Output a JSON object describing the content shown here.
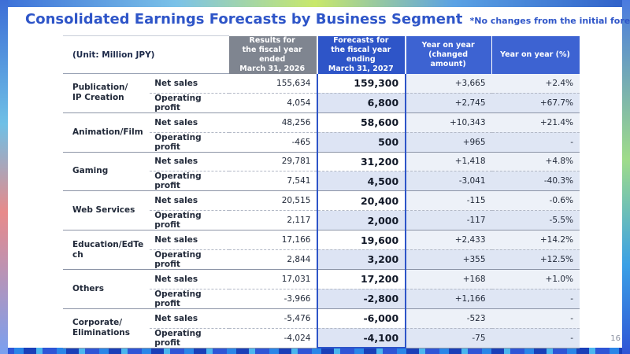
{
  "slide": {
    "title": "Consolidated Earnings Forecasts by Business Segment",
    "note": "*No changes from the initial forecasts",
    "page_number": "16"
  },
  "table": {
    "unit_label": "(Unit: Million JPY)",
    "headers": {
      "results": "Results for\nthe fiscal year ended\nMarch 31, 2026",
      "forecasts": "Forecasts for\nthe fiscal year ending\nMarch 31, 2027",
      "yoy_amount": "Year on year\n(changed amount)",
      "yoy_pct": "Year on year (%)"
    },
    "segments": [
      {
        "name": "Publication/\nIP Creation",
        "rows": [
          {
            "metric": "Net sales",
            "result": "155,634",
            "forecast": "159,300",
            "yoy": "+3,665",
            "pct": "+2.4%"
          },
          {
            "metric": "Operating profit",
            "result": "4,054",
            "forecast": "6,800",
            "yoy": "+2,745",
            "pct": "+67.7%"
          }
        ]
      },
      {
        "name": "Animation/Film",
        "rows": [
          {
            "metric": "Net sales",
            "result": "48,256",
            "forecast": "58,600",
            "yoy": "+10,343",
            "pct": "+21.4%"
          },
          {
            "metric": "Operating profit",
            "result": "-465",
            "forecast": "500",
            "yoy": "+965",
            "pct": "-"
          }
        ]
      },
      {
        "name": "Gaming",
        "rows": [
          {
            "metric": "Net sales",
            "result": "29,781",
            "forecast": "31,200",
            "yoy": "+1,418",
            "pct": "+4.8%"
          },
          {
            "metric": "Operating profit",
            "result": "7,541",
            "forecast": "4,500",
            "yoy": "-3,041",
            "pct": "-40.3%"
          }
        ]
      },
      {
        "name": "Web Services",
        "rows": [
          {
            "metric": "Net sales",
            "result": "20,515",
            "forecast": "20,400",
            "yoy": "-115",
            "pct": "-0.6%"
          },
          {
            "metric": "Operating profit",
            "result": "2,117",
            "forecast": "2,000",
            "yoy": "-117",
            "pct": "-5.5%"
          }
        ]
      },
      {
        "name": "Education/EdTe\nch",
        "rows": [
          {
            "metric": "Net sales",
            "result": "17,166",
            "forecast": "19,600",
            "yoy": "+2,433",
            "pct": "+14.2%"
          },
          {
            "metric": "Operating profit",
            "result": "2,844",
            "forecast": "3,200",
            "yoy": "+355",
            "pct": "+12.5%"
          }
        ]
      },
      {
        "name": "Others",
        "rows": [
          {
            "metric": "Net sales",
            "result": "17,031",
            "forecast": "17,200",
            "yoy": "+168",
            "pct": "+1.0%"
          },
          {
            "metric": "Operating profit",
            "result": "-3,966",
            "forecast": "-2,800",
            "yoy": "+1,166",
            "pct": "-"
          }
        ]
      },
      {
        "name": "Corporate/\nEliminations",
        "rows": [
          {
            "metric": "Net sales",
            "result": "-5,476",
            "forecast": "-6,000",
            "yoy": "-523",
            "pct": "-"
          },
          {
            "metric": "Operating profit",
            "result": "-4,024",
            "forecast": "-4,100",
            "yoy": "-75",
            "pct": "-"
          }
        ]
      }
    ]
  },
  "colors": {
    "title_blue": "#2e55c8",
    "header_gray": "#7f8590",
    "header_blue": "#2e55c8",
    "band_light": "#edf1f8"
  }
}
